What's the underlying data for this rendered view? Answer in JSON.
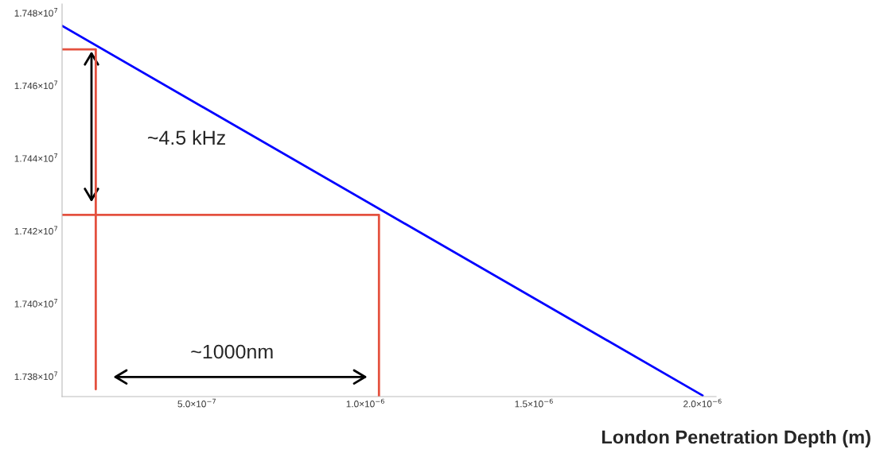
{
  "chart_data": {
    "type": "line",
    "xlabel": "London Penetration Depth (m)",
    "series": [
      {
        "color": "#0000ff",
        "x": [
          1e-07,
          2e-06
        ],
        "values": [
          17476500,
          17374800
        ]
      },
      {
        "color": "#e4513f",
        "x": [
          1e-07,
          2e-07,
          2e-07
        ],
        "values": [
          17470000,
          17470000,
          17376500
        ]
      },
      {
        "color": "#e4513f",
        "x": [
          1e-07,
          1.04e-06,
          1.04e-06
        ],
        "values": [
          17424500,
          17424500,
          17374500
        ]
      }
    ],
    "xlim": [
      1e-07,
      2.04e-06
    ],
    "ylim": [
      17374500,
      17482500
    ],
    "xticks": [
      {
        "value": 5e-07,
        "label": "5.0×10$^{−7}$"
      },
      {
        "value": 1e-06,
        "label": "1.0×10$^{−6}$"
      },
      {
        "value": 1.5e-06,
        "label": "1.5×10$^{−6}$"
      },
      {
        "value": 2e-06,
        "label": "2.0×10$^{−6}$"
      }
    ],
    "yticks": [
      {
        "value": 17380000,
        "label": "1.738×10$^{7}$"
      },
      {
        "value": 17400000,
        "label": "1.740×10$^{7}$"
      },
      {
        "value": 17420000,
        "label": "1.742×10$^{7}$"
      },
      {
        "value": 17440000,
        "label": "1.744×10$^{7}$"
      },
      {
        "value": 17460000,
        "label": "1.746×10$^{7}$"
      },
      {
        "value": 17480000,
        "label": "1.748×10$^{7}$"
      }
    ],
    "annotations": [
      "~4.5 kHz",
      "~1000nm"
    ],
    "grid": false,
    "marker": "none",
    "line_style": "solid"
  }
}
